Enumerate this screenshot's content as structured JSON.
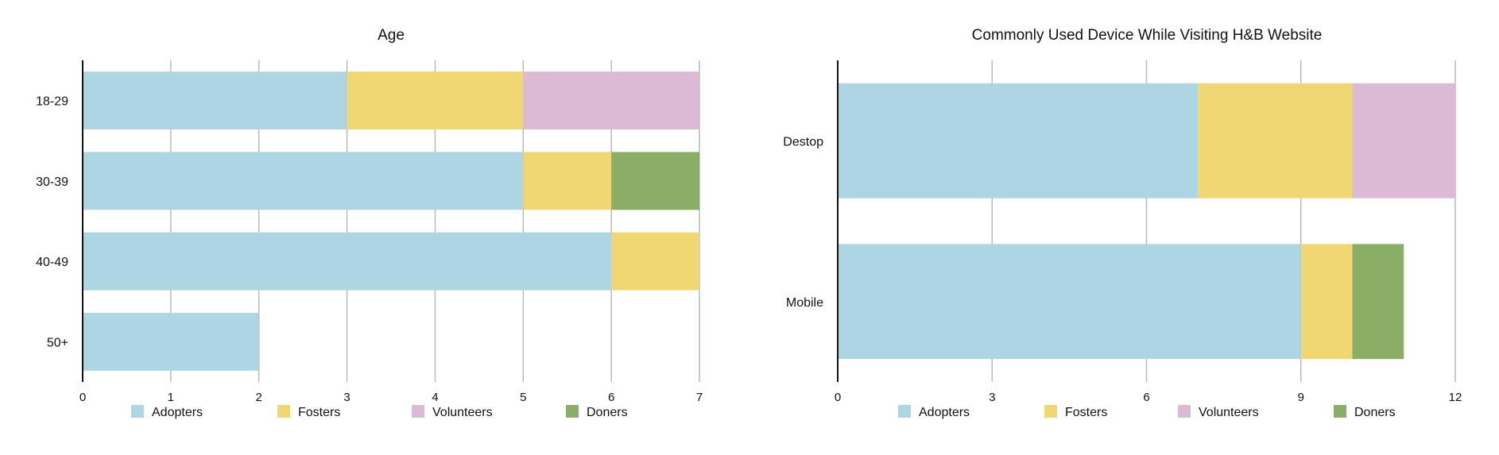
{
  "chart_data": [
    {
      "type": "bar",
      "orientation": "horizontal",
      "stacked": true,
      "title": "Age",
      "categories": [
        "18-29",
        "30-39",
        "40-49",
        "50+"
      ],
      "series": [
        {
          "name": "Adopters",
          "color": "#aed5e2",
          "values": [
            3,
            5,
            6,
            2
          ]
        },
        {
          "name": "Fosters",
          "color": "#f0d774",
          "values": [
            2,
            1,
            1,
            0
          ]
        },
        {
          "name": "Volunteers",
          "color": "#dcb9d4",
          "values": [
            2,
            0,
            0,
            0
          ]
        },
        {
          "name": "Doners",
          "color": "#8aae65",
          "values": [
            0,
            1,
            0,
            0
          ]
        }
      ],
      "xlim": [
        0,
        7
      ],
      "xticks": [
        0,
        1,
        2,
        3,
        4,
        5,
        6,
        7
      ],
      "grid": true,
      "legend": "bottom"
    },
    {
      "type": "bar",
      "orientation": "horizontal",
      "stacked": true,
      "title": "Commonly Used Device While Visiting H&B Website",
      "categories": [
        "Destop",
        "Mobile"
      ],
      "series": [
        {
          "name": "Adopters",
          "color": "#aed5e2",
          "values": [
            7,
            9
          ]
        },
        {
          "name": "Fosters",
          "color": "#f0d774",
          "values": [
            3,
            1
          ]
        },
        {
          "name": "Volunteers",
          "color": "#dcb9d4",
          "values": [
            2,
            0
          ]
        },
        {
          "name": "Doners",
          "color": "#8aae65",
          "values": [
            0,
            1
          ]
        }
      ],
      "xlim": [
        0,
        12
      ],
      "xticks": [
        0,
        3,
        6,
        9,
        12
      ],
      "grid": true,
      "legend": "bottom"
    }
  ]
}
